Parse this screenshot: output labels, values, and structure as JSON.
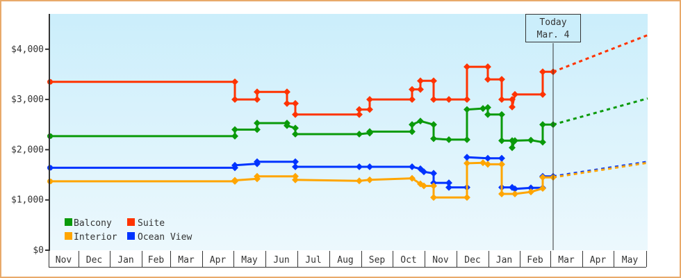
{
  "chart_data": {
    "type": "line",
    "title": "",
    "xlabel": "",
    "ylabel": "",
    "ylim": [
      0,
      4700
    ],
    "y_ticks": [
      "$0",
      "$1,000",
      "$2,000",
      "$3,000",
      "$4,000"
    ],
    "y_tick_values": [
      0,
      1000,
      2000,
      3000,
      4000
    ],
    "x_ticks": [
      "Nov",
      "Dec",
      "Jan",
      "Feb",
      "Mar",
      "Apr",
      "May",
      "Jun",
      "Jul",
      "Aug",
      "Sep",
      "Oct",
      "Nov",
      "Dec",
      "Jan",
      "Feb",
      "Mar",
      "Apr",
      "May"
    ],
    "today_marker": {
      "line1": "Today",
      "line2": "Mar. 4"
    },
    "legend": [
      {
        "name": "Balcony",
        "color": "#0a9a0a"
      },
      {
        "name": "Suite",
        "color": "#ff3300"
      },
      {
        "name": "Interior",
        "color": "#ffa500"
      },
      {
        "name": "Ocean View",
        "color": "#0033ff"
      }
    ],
    "series": [
      {
        "name": "Suite",
        "color": "#ff3300",
        "points": [
          [
            72,
            3350
          ],
          [
            338,
            3350
          ],
          [
            338,
            3000
          ],
          [
            370,
            3000
          ],
          [
            370,
            3150
          ],
          [
            413,
            3150
          ],
          [
            413,
            2920
          ],
          [
            425,
            2920
          ],
          [
            425,
            2700
          ],
          [
            517,
            2700
          ],
          [
            517,
            2800
          ],
          [
            532,
            2800
          ],
          [
            532,
            3000
          ],
          [
            593,
            3000
          ],
          [
            593,
            3200
          ],
          [
            605,
            3200
          ],
          [
            605,
            3370
          ],
          [
            624,
            3370
          ],
          [
            624,
            3000
          ],
          [
            646,
            3000
          ],
          [
            672,
            3000
          ],
          [
            672,
            3650
          ],
          [
            702,
            3650
          ],
          [
            702,
            3400
          ],
          [
            722,
            3400
          ],
          [
            722,
            3000
          ],
          [
            737,
            3000
          ],
          [
            737,
            2850
          ],
          [
            741,
            3100
          ],
          [
            781,
            3100
          ],
          [
            781,
            3550
          ],
          [
            796,
            3550
          ]
        ],
        "forecast": [
          [
            796,
            3550
          ],
          [
            932,
            4280
          ]
        ]
      },
      {
        "name": "Balcony",
        "color": "#0a9a0a",
        "points": [
          [
            72,
            2270
          ],
          [
            338,
            2270
          ],
          [
            338,
            2400
          ],
          [
            370,
            2400
          ],
          [
            370,
            2530
          ],
          [
            413,
            2530
          ],
          [
            413,
            2480
          ],
          [
            425,
            2430
          ],
          [
            425,
            2310
          ],
          [
            517,
            2310
          ],
          [
            532,
            2330
          ],
          [
            532,
            2360
          ],
          [
            593,
            2360
          ],
          [
            593,
            2500
          ],
          [
            605,
            2570
          ],
          [
            624,
            2500
          ],
          [
            624,
            2220
          ],
          [
            646,
            2200
          ],
          [
            672,
            2200
          ],
          [
            672,
            2800
          ],
          [
            695,
            2820
          ],
          [
            702,
            2840
          ],
          [
            702,
            2700
          ],
          [
            722,
            2700
          ],
          [
            722,
            2180
          ],
          [
            737,
            2180
          ],
          [
            737,
            2040
          ],
          [
            741,
            2180
          ],
          [
            764,
            2190
          ],
          [
            781,
            2150
          ],
          [
            781,
            2500
          ],
          [
            796,
            2500
          ]
        ],
        "forecast": [
          [
            796,
            2500
          ],
          [
            932,
            3020
          ]
        ]
      },
      {
        "name": "Ocean View",
        "color": "#0033ff",
        "points": [
          [
            72,
            1640
          ],
          [
            338,
            1640
          ],
          [
            338,
            1690
          ],
          [
            370,
            1720
          ],
          [
            370,
            1760
          ],
          [
            425,
            1760
          ],
          [
            425,
            1660
          ],
          [
            517,
            1660
          ],
          [
            532,
            1660
          ],
          [
            593,
            1660
          ],
          [
            605,
            1620
          ],
          [
            610,
            1560
          ],
          [
            624,
            1530
          ],
          [
            624,
            1340
          ],
          [
            646,
            1340
          ],
          [
            646,
            1250
          ],
          [
            672,
            1250
          ],
          [
            672,
            1850
          ],
          [
            702,
            1830
          ],
          [
            722,
            1830
          ],
          [
            722,
            1250
          ],
          [
            737,
            1250
          ],
          [
            741,
            1220
          ],
          [
            764,
            1240
          ],
          [
            781,
            1240
          ],
          [
            781,
            1470
          ],
          [
            796,
            1470
          ]
        ],
        "forecast": [
          [
            796,
            1470
          ],
          [
            932,
            1760
          ]
        ]
      },
      {
        "name": "Interior",
        "color": "#ffa500",
        "points": [
          [
            72,
            1370
          ],
          [
            338,
            1370
          ],
          [
            338,
            1390
          ],
          [
            370,
            1420
          ],
          [
            370,
            1470
          ],
          [
            425,
            1470
          ],
          [
            425,
            1400
          ],
          [
            517,
            1380
          ],
          [
            532,
            1400
          ],
          [
            593,
            1430
          ],
          [
            605,
            1320
          ],
          [
            610,
            1280
          ],
          [
            624,
            1280
          ],
          [
            624,
            1050
          ],
          [
            672,
            1050
          ],
          [
            672,
            1730
          ],
          [
            695,
            1740
          ],
          [
            702,
            1710
          ],
          [
            722,
            1710
          ],
          [
            722,
            1120
          ],
          [
            741,
            1120
          ],
          [
            764,
            1160
          ],
          [
            781,
            1230
          ],
          [
            781,
            1450
          ],
          [
            796,
            1450
          ]
        ],
        "forecast": [
          [
            796,
            1450
          ],
          [
            932,
            1740
          ]
        ]
      }
    ]
  }
}
